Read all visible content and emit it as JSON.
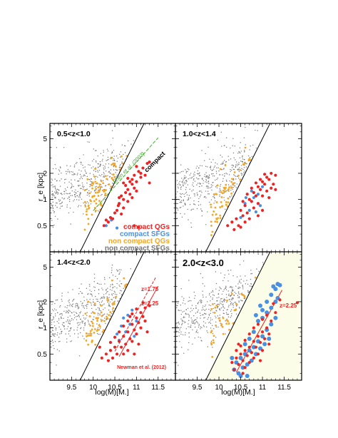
{
  "chart_data": [
    {
      "type": "scatter",
      "title": "0.5<z<1.0",
      "xlabel": "",
      "ylabel": "r_e [kpc]",
      "xlim": [
        9.0,
        11.9
      ],
      "ylim": [
        0.25,
        7.5
      ],
      "yscale": "log",
      "background": "#ffffff",
      "annotations": [
        {
          "text": "Shen et al. (2003)",
          "color": "#3fae2a"
        },
        {
          "text": "compact",
          "color": "#000000"
        }
      ],
      "legend": [
        {
          "label": "compact QGs",
          "color": "#ee2222"
        },
        {
          "label": "compact SFGs",
          "color": "#4a90e2"
        },
        {
          "label": "non compact QGs",
          "color": "#f5a623"
        },
        {
          "label": "non compact SFGs",
          "color": "#777777"
        }
      ],
      "seed": 11,
      "n_gray": 560,
      "n_orange": 210,
      "red_points": [
        [
          10.95,
          1.9
        ],
        [
          11.05,
          2.1
        ],
        [
          10.7,
          1.0
        ],
        [
          10.8,
          1.3
        ],
        [
          10.9,
          1.5
        ],
        [
          10.6,
          0.9
        ],
        [
          10.55,
          0.75
        ],
        [
          10.65,
          1.1
        ],
        [
          10.75,
          1.2
        ],
        [
          10.5,
          0.7
        ],
        [
          10.45,
          0.6
        ],
        [
          10.35,
          0.55
        ],
        [
          10.9,
          1.7
        ],
        [
          11.0,
          1.6
        ],
        [
          11.1,
          1.8
        ],
        [
          10.85,
          1.15
        ],
        [
          10.8,
          0.95
        ],
        [
          10.95,
          1.35
        ],
        [
          11.15,
          2.3
        ],
        [
          11.25,
          2.6
        ],
        [
          10.7,
          0.8
        ],
        [
          10.6,
          1.05
        ],
        [
          10.4,
          0.62
        ],
        [
          10.3,
          0.58
        ],
        [
          11.0,
          1.25
        ],
        [
          10.85,
          1.6
        ],
        [
          11.1,
          2.0
        ],
        [
          10.75,
          1.45
        ],
        [
          10.58,
          0.85
        ],
        [
          11.2,
          1.9
        ],
        [
          10.9,
          1.05
        ],
        [
          11.3,
          1.55
        ],
        [
          10.95,
          0.5
        ],
        [
          11.05,
          0.48
        ],
        [
          11.3,
          2.7
        ],
        [
          10.65,
          0.68
        ],
        [
          10.25,
          0.5
        ],
        [
          10.8,
          1.75
        ],
        [
          11.0,
          2.4
        ],
        [
          10.7,
          1.55
        ]
      ],
      "blue_points": [
        [
          10.3,
          0.5
        ],
        [
          10.55,
          0.47
        ],
        [
          10.42,
          0.58
        ]
      ]
    },
    {
      "type": "scatter",
      "title": "1.0<z<1.4",
      "xlabel": "",
      "ylabel": "",
      "xlim": [
        9.0,
        11.9
      ],
      "ylim": [
        0.25,
        7.5
      ],
      "yscale": "log",
      "background": "#ffffff",
      "seed": 23,
      "n_gray": 560,
      "n_orange": 190,
      "red_points": [
        [
          10.8,
          1.2
        ],
        [
          10.9,
          1.4
        ],
        [
          11.0,
          1.6
        ],
        [
          11.1,
          1.8
        ],
        [
          11.2,
          2.0
        ],
        [
          11.3,
          1.9
        ],
        [
          10.7,
          1.0
        ],
        [
          10.6,
          0.85
        ],
        [
          10.5,
          0.75
        ],
        [
          10.4,
          0.6
        ],
        [
          10.3,
          0.55
        ],
        [
          10.2,
          0.5
        ],
        [
          10.75,
          0.95
        ],
        [
          10.85,
          1.1
        ],
        [
          10.95,
          1.3
        ],
        [
          11.05,
          1.5
        ],
        [
          11.15,
          1.7
        ],
        [
          11.25,
          1.5
        ],
        [
          10.65,
          0.7
        ],
        [
          10.55,
          0.65
        ],
        [
          10.45,
          0.5
        ],
        [
          10.9,
          0.9
        ],
        [
          11.0,
          1.1
        ],
        [
          11.1,
          1.25
        ],
        [
          10.8,
          0.8
        ],
        [
          10.7,
          0.6
        ],
        [
          10.6,
          0.55
        ],
        [
          11.2,
          1.35
        ],
        [
          11.3,
          1.3
        ],
        [
          10.5,
          0.48
        ],
        [
          10.35,
          0.45
        ],
        [
          10.95,
          1.7
        ],
        [
          11.05,
          1.95
        ],
        [
          10.85,
          1.55
        ],
        [
          10.75,
          1.35
        ],
        [
          11.0,
          0.75
        ],
        [
          10.9,
          0.65
        ],
        [
          11.15,
          1.05
        ],
        [
          10.65,
          1.15
        ],
        [
          10.55,
          0.95
        ]
      ],
      "blue_points": [
        [
          10.6,
          0.9
        ],
        [
          10.8,
          1.05
        ],
        [
          10.95,
          0.85
        ],
        [
          10.7,
          0.75
        ],
        [
          11.0,
          1.4
        ],
        [
          10.5,
          0.62
        ],
        [
          10.75,
          1.25
        ],
        [
          10.9,
          1.15
        ],
        [
          10.62,
          1.05
        ],
        [
          10.85,
          0.72
        ]
      ]
    },
    {
      "type": "scatter",
      "title": "1.4<z<2.0",
      "xlabel": "log(M)[M.]",
      "ylabel": "r_e [kpc]",
      "xlim": [
        9.0,
        11.9
      ],
      "ylim": [
        0.25,
        7.5
      ],
      "yscale": "log",
      "background": "#ffffff",
      "annotations": [
        {
          "text": "z=1.75",
          "color": "#ee2222"
        },
        {
          "text": "z=2.25",
          "color": "#ee2222"
        },
        {
          "text": "Newman et al. (2012)",
          "color": "#ee2222"
        }
      ],
      "seed": 37,
      "n_gray": 540,
      "n_orange": 140,
      "red_points": [
        [
          10.8,
          0.9
        ],
        [
          10.9,
          1.1
        ],
        [
          11.0,
          1.3
        ],
        [
          11.1,
          1.5
        ],
        [
          11.2,
          1.7
        ],
        [
          10.7,
          0.8
        ],
        [
          10.6,
          0.7
        ],
        [
          10.5,
          0.6
        ],
        [
          10.4,
          0.55
        ],
        [
          10.3,
          0.5
        ],
        [
          10.2,
          0.45
        ],
        [
          10.85,
          0.75
        ],
        [
          10.95,
          0.95
        ],
        [
          11.05,
          1.15
        ],
        [
          11.15,
          1.35
        ],
        [
          10.75,
          0.65
        ],
        [
          10.65,
          0.6
        ],
        [
          10.55,
          0.5
        ],
        [
          10.45,
          0.45
        ],
        [
          10.9,
          0.7
        ],
        [
          11.0,
          0.85
        ],
        [
          11.1,
          1.0
        ],
        [
          10.8,
          0.55
        ],
        [
          10.7,
          0.5
        ],
        [
          11.2,
          1.2
        ],
        [
          11.3,
          1.8
        ],
        [
          10.35,
          0.42
        ],
        [
          10.6,
          0.9
        ],
        [
          10.7,
          1.05
        ],
        [
          10.8,
          1.2
        ],
        [
          10.9,
          1.45
        ],
        [
          11.0,
          1.65
        ],
        [
          11.05,
          0.65
        ],
        [
          10.95,
          0.5
        ],
        [
          11.25,
          0.9
        ],
        [
          10.5,
          0.78
        ],
        [
          10.4,
          0.68
        ],
        [
          10.15,
          0.6
        ],
        [
          10.85,
          1.35
        ],
        [
          11.15,
          1.95
        ]
      ],
      "blue_points": [
        [
          10.8,
          1.4
        ],
        [
          10.9,
          1.6
        ],
        [
          10.65,
          1.05
        ],
        [
          10.75,
          0.9
        ],
        [
          10.55,
          0.85
        ],
        [
          11.0,
          1.2
        ],
        [
          10.7,
          1.3
        ],
        [
          10.85,
          1.1
        ],
        [
          10.95,
          0.8
        ],
        [
          10.6,
          0.72
        ]
      ]
    },
    {
      "type": "scatter",
      "title": "2.0<z<3.0",
      "xlabel": "log(M)[M.]",
      "ylabel": "",
      "xlim": [
        9.0,
        11.9
      ],
      "ylim": [
        0.25,
        7.5
      ],
      "yscale": "log",
      "background": "#fbfde8",
      "annotations": [
        {
          "text": "z=2.25",
          "color": "#ee2222"
        }
      ],
      "seed": 53,
      "n_gray": 520,
      "n_orange": 110,
      "red_points": [
        [
          10.5,
          0.5
        ],
        [
          10.6,
          0.55
        ],
        [
          10.7,
          0.6
        ],
        [
          10.8,
          0.7
        ],
        [
          10.9,
          0.8
        ],
        [
          11.0,
          0.9
        ],
        [
          11.1,
          1.0
        ],
        [
          10.4,
          0.45
        ],
        [
          10.3,
          0.4
        ],
        [
          10.45,
          0.38
        ],
        [
          10.55,
          0.42
        ],
        [
          10.65,
          0.48
        ],
        [
          10.75,
          0.52
        ],
        [
          10.85,
          0.6
        ],
        [
          10.95,
          0.68
        ],
        [
          11.05,
          0.75
        ],
        [
          11.15,
          0.85
        ],
        [
          10.6,
          0.35
        ],
        [
          10.7,
          0.4
        ],
        [
          10.8,
          0.45
        ],
        [
          10.9,
          0.5
        ],
        [
          11.0,
          0.55
        ],
        [
          11.2,
          1.2
        ],
        [
          11.3,
          1.5
        ],
        [
          10.5,
          0.62
        ],
        [
          10.4,
          0.55
        ],
        [
          10.35,
          0.33
        ],
        [
          10.55,
          0.3
        ],
        [
          10.9,
          1.1
        ],
        [
          11.0,
          1.25
        ],
        [
          10.8,
          1.0
        ],
        [
          10.7,
          0.85
        ],
        [
          11.1,
          1.4
        ],
        [
          11.25,
          1.9
        ],
        [
          11.4,
          2.1
        ],
        [
          11.8,
          1.95
        ],
        [
          10.6,
          0.72
        ],
        [
          10.45,
          0.65
        ],
        [
          11.15,
          0.65
        ],
        [
          10.95,
          0.42
        ]
      ],
      "blue_points": [
        [
          10.5,
          0.45
        ],
        [
          10.6,
          0.5
        ],
        [
          10.7,
          0.55
        ],
        [
          10.8,
          0.6
        ],
        [
          10.9,
          0.7
        ],
        [
          11.0,
          0.8
        ],
        [
          11.1,
          0.95
        ],
        [
          11.2,
          1.1
        ],
        [
          11.3,
          1.3
        ],
        [
          10.4,
          0.4
        ],
        [
          10.55,
          0.35
        ],
        [
          10.65,
          0.38
        ],
        [
          10.75,
          0.42
        ],
        [
          10.85,
          0.5
        ],
        [
          10.95,
          0.58
        ],
        [
          11.05,
          0.65
        ],
        [
          11.15,
          0.75
        ],
        [
          10.45,
          0.3
        ],
        [
          10.35,
          0.33
        ],
        [
          10.5,
          0.28
        ],
        [
          11.0,
          1.6
        ],
        [
          11.1,
          2.0
        ],
        [
          11.2,
          2.4
        ],
        [
          11.3,
          2.8
        ],
        [
          11.35,
          3.2
        ],
        [
          11.25,
          3.0
        ],
        [
          11.4,
          3.1
        ],
        [
          11.35,
          2.2
        ],
        [
          10.9,
          1.2
        ],
        [
          10.8,
          0.9
        ],
        [
          10.7,
          0.75
        ],
        [
          10.6,
          0.65
        ],
        [
          11.0,
          1.3
        ],
        [
          11.1,
          1.5
        ],
        [
          10.85,
          1.4
        ],
        [
          10.95,
          1.8
        ],
        [
          11.2,
          1.7
        ],
        [
          11.3,
          2.0
        ],
        [
          10.3,
          0.45
        ],
        [
          10.65,
          0.28
        ]
      ]
    }
  ],
  "x_ticks": [
    "9.5",
    "10",
    "10.5",
    "11",
    "11.5"
  ],
  "y_ticks": [
    "0.5",
    "1",
    "2",
    "5"
  ]
}
